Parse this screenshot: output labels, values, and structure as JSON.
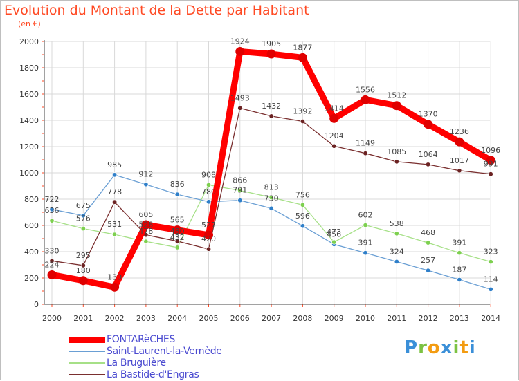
{
  "header": {
    "title": "Evolution du Montant de la Dette par Habitant",
    "unit": "(en €)"
  },
  "brand": {
    "name": "Proxiti",
    "letters": [
      "P",
      "r",
      "o",
      "x",
      "i",
      "t",
      "i"
    ],
    "letter_colors": [
      "#3a8fd8",
      "#7cc242",
      "#f39c12",
      "#3a8fd8",
      "#7cc242",
      "#f39c12",
      "#3a8fd8"
    ]
  },
  "colors": {
    "title": "#ff4a24",
    "grid": "#d9d9d9",
    "axis_text": "#333333",
    "label_text": "#444444",
    "legend_text": "#4a4ad0"
  },
  "chart_data": {
    "type": "line",
    "title": "Evolution du Montant de la Dette par Habitant",
    "ylabel": "(en €)",
    "xlabel": "",
    "ylim": [
      0,
      2000
    ],
    "yticks": [
      0,
      200,
      400,
      600,
      800,
      1000,
      1200,
      1400,
      1600,
      1800,
      2000
    ],
    "grid": true,
    "legend_position": "bottom-left",
    "categories": [
      "2000",
      "2001",
      "2002",
      "2003",
      "2004",
      "2005",
      "2006",
      "2007",
      "2008",
      "2009",
      "2010",
      "2011",
      "2012",
      "2013",
      "2014"
    ],
    "series": [
      {
        "name": "FONTARèCHES",
        "color": "#ff0000",
        "marker": "#e00000",
        "emphasis": true,
        "values": [
          224,
          180,
          130,
          605,
          565,
          527,
          1924,
          1905,
          1877,
          1414,
          1556,
          1512,
          1370,
          1236,
          1096
        ]
      },
      {
        "name": "Saint-Laurent-la-Vernède",
        "color": "#6a9fd4",
        "marker": "#2f7fc9",
        "emphasis": false,
        "values": [
          722,
          675,
          985,
          912,
          836,
          780,
          791,
          730,
          596,
          456,
          391,
          324,
          257,
          187,
          114
        ]
      },
      {
        "name": "La Bruguière",
        "color": "#a6e087",
        "marker": "#7dd04f",
        "emphasis": false,
        "values": [
          636,
          576,
          531,
          478,
          432,
          908,
          866,
          813,
          756,
          473,
          602,
          538,
          468,
          391,
          323
        ]
      },
      {
        "name": "La Bastide-d'Engras",
        "color": "#7a2f2f",
        "marker": "#6b2222",
        "emphasis": false,
        "values": [
          330,
          295,
          778,
          528,
          480,
          420,
          1493,
          1432,
          1392,
          1204,
          1149,
          1085,
          1064,
          1017,
          991
        ]
      }
    ]
  }
}
